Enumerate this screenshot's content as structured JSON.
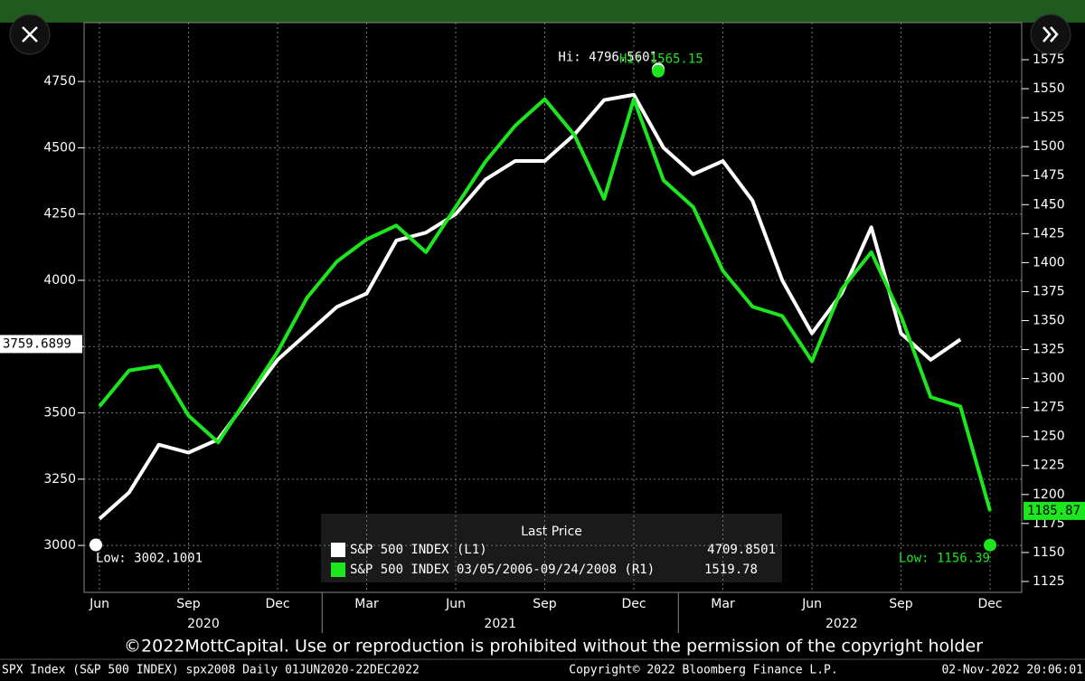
{
  "chart_data": {
    "type": "line",
    "categories": [
      "Jun",
      null,
      null,
      "Sep",
      null,
      null,
      "Dec",
      null,
      null,
      "Mar",
      null,
      null,
      "Jun",
      null,
      null,
      "Sep",
      null,
      null,
      "Dec",
      null,
      null,
      "Mar",
      null,
      null,
      "Jun",
      null,
      null,
      "Sep",
      null,
      null,
      "Dec"
    ],
    "year_labels": [
      "2020",
      "2021",
      "2022"
    ],
    "series": [
      {
        "name": "S&P 500 INDEX  (L1)",
        "color": "#ffffff",
        "legend_value": 4709.8501,
        "axis_tag": 3759.6899,
        "values": [
          3100,
          3200,
          3380,
          3350,
          3400,
          3550,
          3700,
          3800,
          3900,
          3950,
          4150,
          4180,
          4250,
          4380,
          4450,
          4450,
          4550,
          4680,
          4700,
          4500,
          4400,
          4450,
          4300,
          4000,
          3800,
          3950,
          4200,
          3800,
          3700,
          3777,
          null
        ]
      },
      {
        "name": "S&P 500 INDEX 03/05/2006-09/24/2008  (R1)",
        "color": "#1ee61e",
        "axis": "y2",
        "legend_value": 1519.78,
        "axis_tag": 1185.87,
        "values": [
          1276,
          1307,
          1311,
          1268,
          1245,
          1284,
          1323,
          1370,
          1401,
          1420,
          1432,
          1409,
          1448,
          1487,
          1518,
          1541,
          1510,
          1455,
          1541,
          1471,
          1448,
          1393,
          1362,
          1354,
          1315,
          1377,
          1409,
          1354,
          1284,
          1276,
          1185.87
        ]
      }
    ],
    "legend_title": "Last Price",
    "annotations": [
      {
        "text": "Hi: 4796.5601",
        "value": 4796.5601
      },
      {
        "text": "Hi: 1565.15",
        "value": 1565.15,
        "axis": "y2"
      },
      {
        "text": "Low: 3002.1001",
        "value": 3002.1001
      },
      {
        "text": "Low: 1156.39",
        "value": 1156.39,
        "axis": "y2"
      }
    ],
    "ylim": [
      2823,
      4972
    ],
    "yticks": [
      3000,
      3250,
      3500,
      3750,
      4000,
      4250,
      4500,
      4750
    ],
    "y2lim": [
      1115.6,
      1607
    ],
    "y2ticks": [
      1125,
      1150,
      1175,
      1200,
      1225,
      1250,
      1275,
      1300,
      1325,
      1350,
      1375,
      1400,
      1425,
      1450,
      1475,
      1500,
      1525,
      1550,
      1575
    ],
    "grid": true,
    "watermark": "©2022MottCapital. Use or reproduction is prohibited without the permission of the copyright holder",
    "footer": [
      "SPX Index (S&P 500 INDEX) spx2008  Daily 01JUN2020-22DEC2022",
      "Copyright© 2022 Bloomberg Finance L.P.",
      "02-Nov-2022 20:06:01"
    ]
  }
}
